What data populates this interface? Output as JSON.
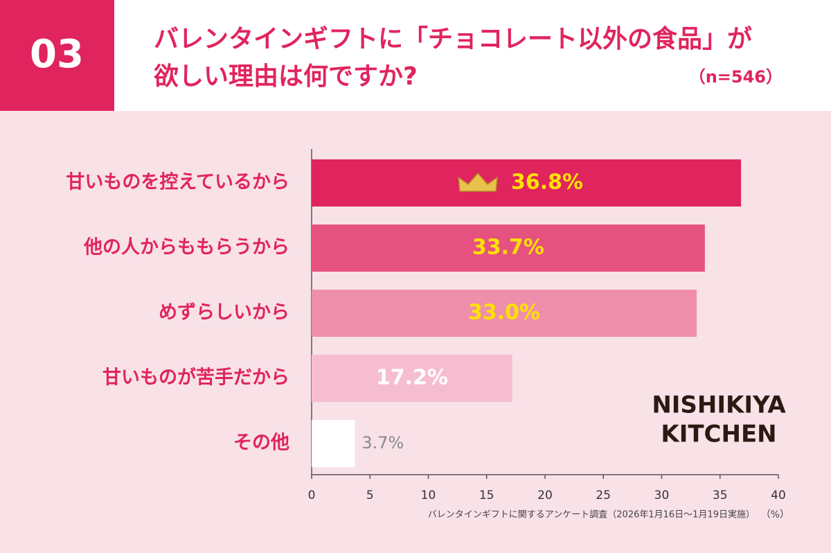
{
  "header": {
    "number": "03",
    "title_lines": [
      "バレンタインギフトに「チョコレート以外の食品」が",
      "欲しい理由は何ですか?"
    ],
    "sample": "（n=546）"
  },
  "chart_data": {
    "type": "bar",
    "orientation": "horizontal",
    "categories": [
      "甘いものを控えているから",
      "他の人からももらうから",
      "めずらしいから",
      "甘いものが苦手だから",
      "その他"
    ],
    "values": [
      36.8,
      33.7,
      33.0,
      17.2,
      3.7
    ],
    "value_labels": [
      "36.8%",
      "33.7%",
      "33.0%",
      "17.2%",
      "3.7%"
    ],
    "colors": [
      "#e0245e",
      "#e6527f",
      "#ef8fab",
      "#f6bdd0",
      "#ffffff"
    ],
    "value_label_colors": [
      "#ffe100",
      "#ffe100",
      "#ffe100",
      "#ffffff",
      "#8a8a8a"
    ],
    "xlim": [
      0,
      40
    ],
    "xticks": [
      0,
      5,
      10,
      15,
      20,
      25,
      30,
      35,
      40
    ],
    "x_unit": "（%）",
    "source": "バレンタインギフトに関するアンケート調査（2026年1月16日〜1月19日実施）"
  },
  "logo": {
    "lines": [
      "NISHIKIYA",
      "KITCHEN"
    ]
  }
}
